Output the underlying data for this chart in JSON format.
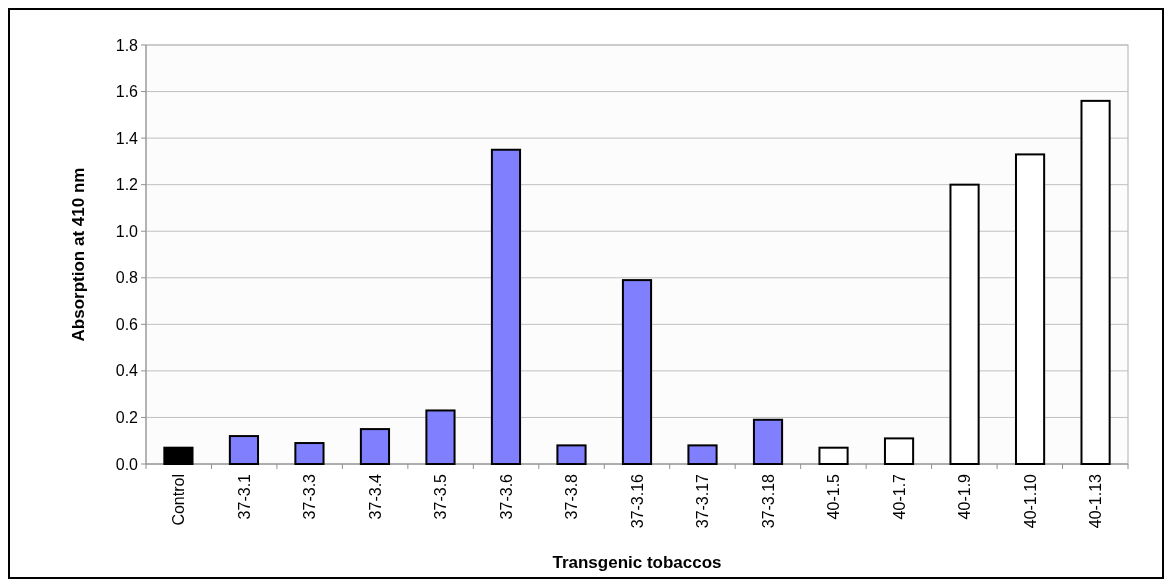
{
  "chart_data": {
    "type": "bar",
    "xlabel": "Transgenic tobaccos",
    "ylabel": "Absorption at 410 nm",
    "categories": [
      "Control",
      "37-3.1",
      "37-3.3",
      "37-3.4",
      "37-3.5",
      "37-3.6",
      "37-3.8",
      "37-3.16",
      "37-3.17",
      "37-3.18",
      "40-1.5",
      "40-1.7",
      "40-1.9",
      "40-1.10",
      "40-1.13"
    ],
    "values": [
      0.07,
      0.12,
      0.09,
      0.15,
      0.23,
      1.35,
      0.08,
      0.79,
      0.08,
      0.19,
      0.07,
      0.11,
      1.2,
      1.33,
      1.56
    ],
    "colors": [
      "#000000",
      "#8080ff",
      "#8080ff",
      "#8080ff",
      "#8080ff",
      "#8080ff",
      "#8080ff",
      "#8080ff",
      "#8080ff",
      "#8080ff",
      "#ffffff",
      "#ffffff",
      "#ffffff",
      "#ffffff",
      "#ffffff"
    ],
    "ylim": [
      0,
      1.8
    ],
    "yticks": [
      {
        "value": 0,
        "label": "0.0"
      },
      0.2,
      0.4,
      0.6,
      0.8,
      {
        "value": 1,
        "label": "1.0"
      },
      1.2,
      1.4,
      1.6,
      1.8
    ],
    "grid": "y"
  }
}
